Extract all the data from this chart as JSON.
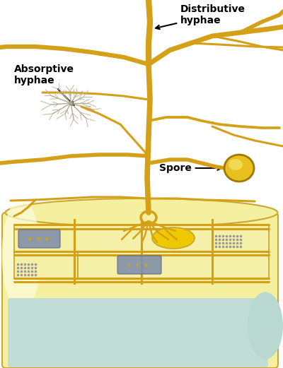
{
  "bg_color": "#ffffff",
  "hypha_color": "#D4A017",
  "hypha_lw": 4.0,
  "hypha_lw_thin": 2.2,
  "root_fill": "#F5F0A0",
  "root_stroke": "#C8A830",
  "teal_fill": "#C0DDD5",
  "cell_fill": "#F5F0A8",
  "nucleus_fill": "#F0C800",
  "organelle_fill": "#8090A8",
  "title_text": "Distributive\nhyphae",
  "absorptive_text": "Absorptive\nhyphae",
  "spore_text": "Spore"
}
